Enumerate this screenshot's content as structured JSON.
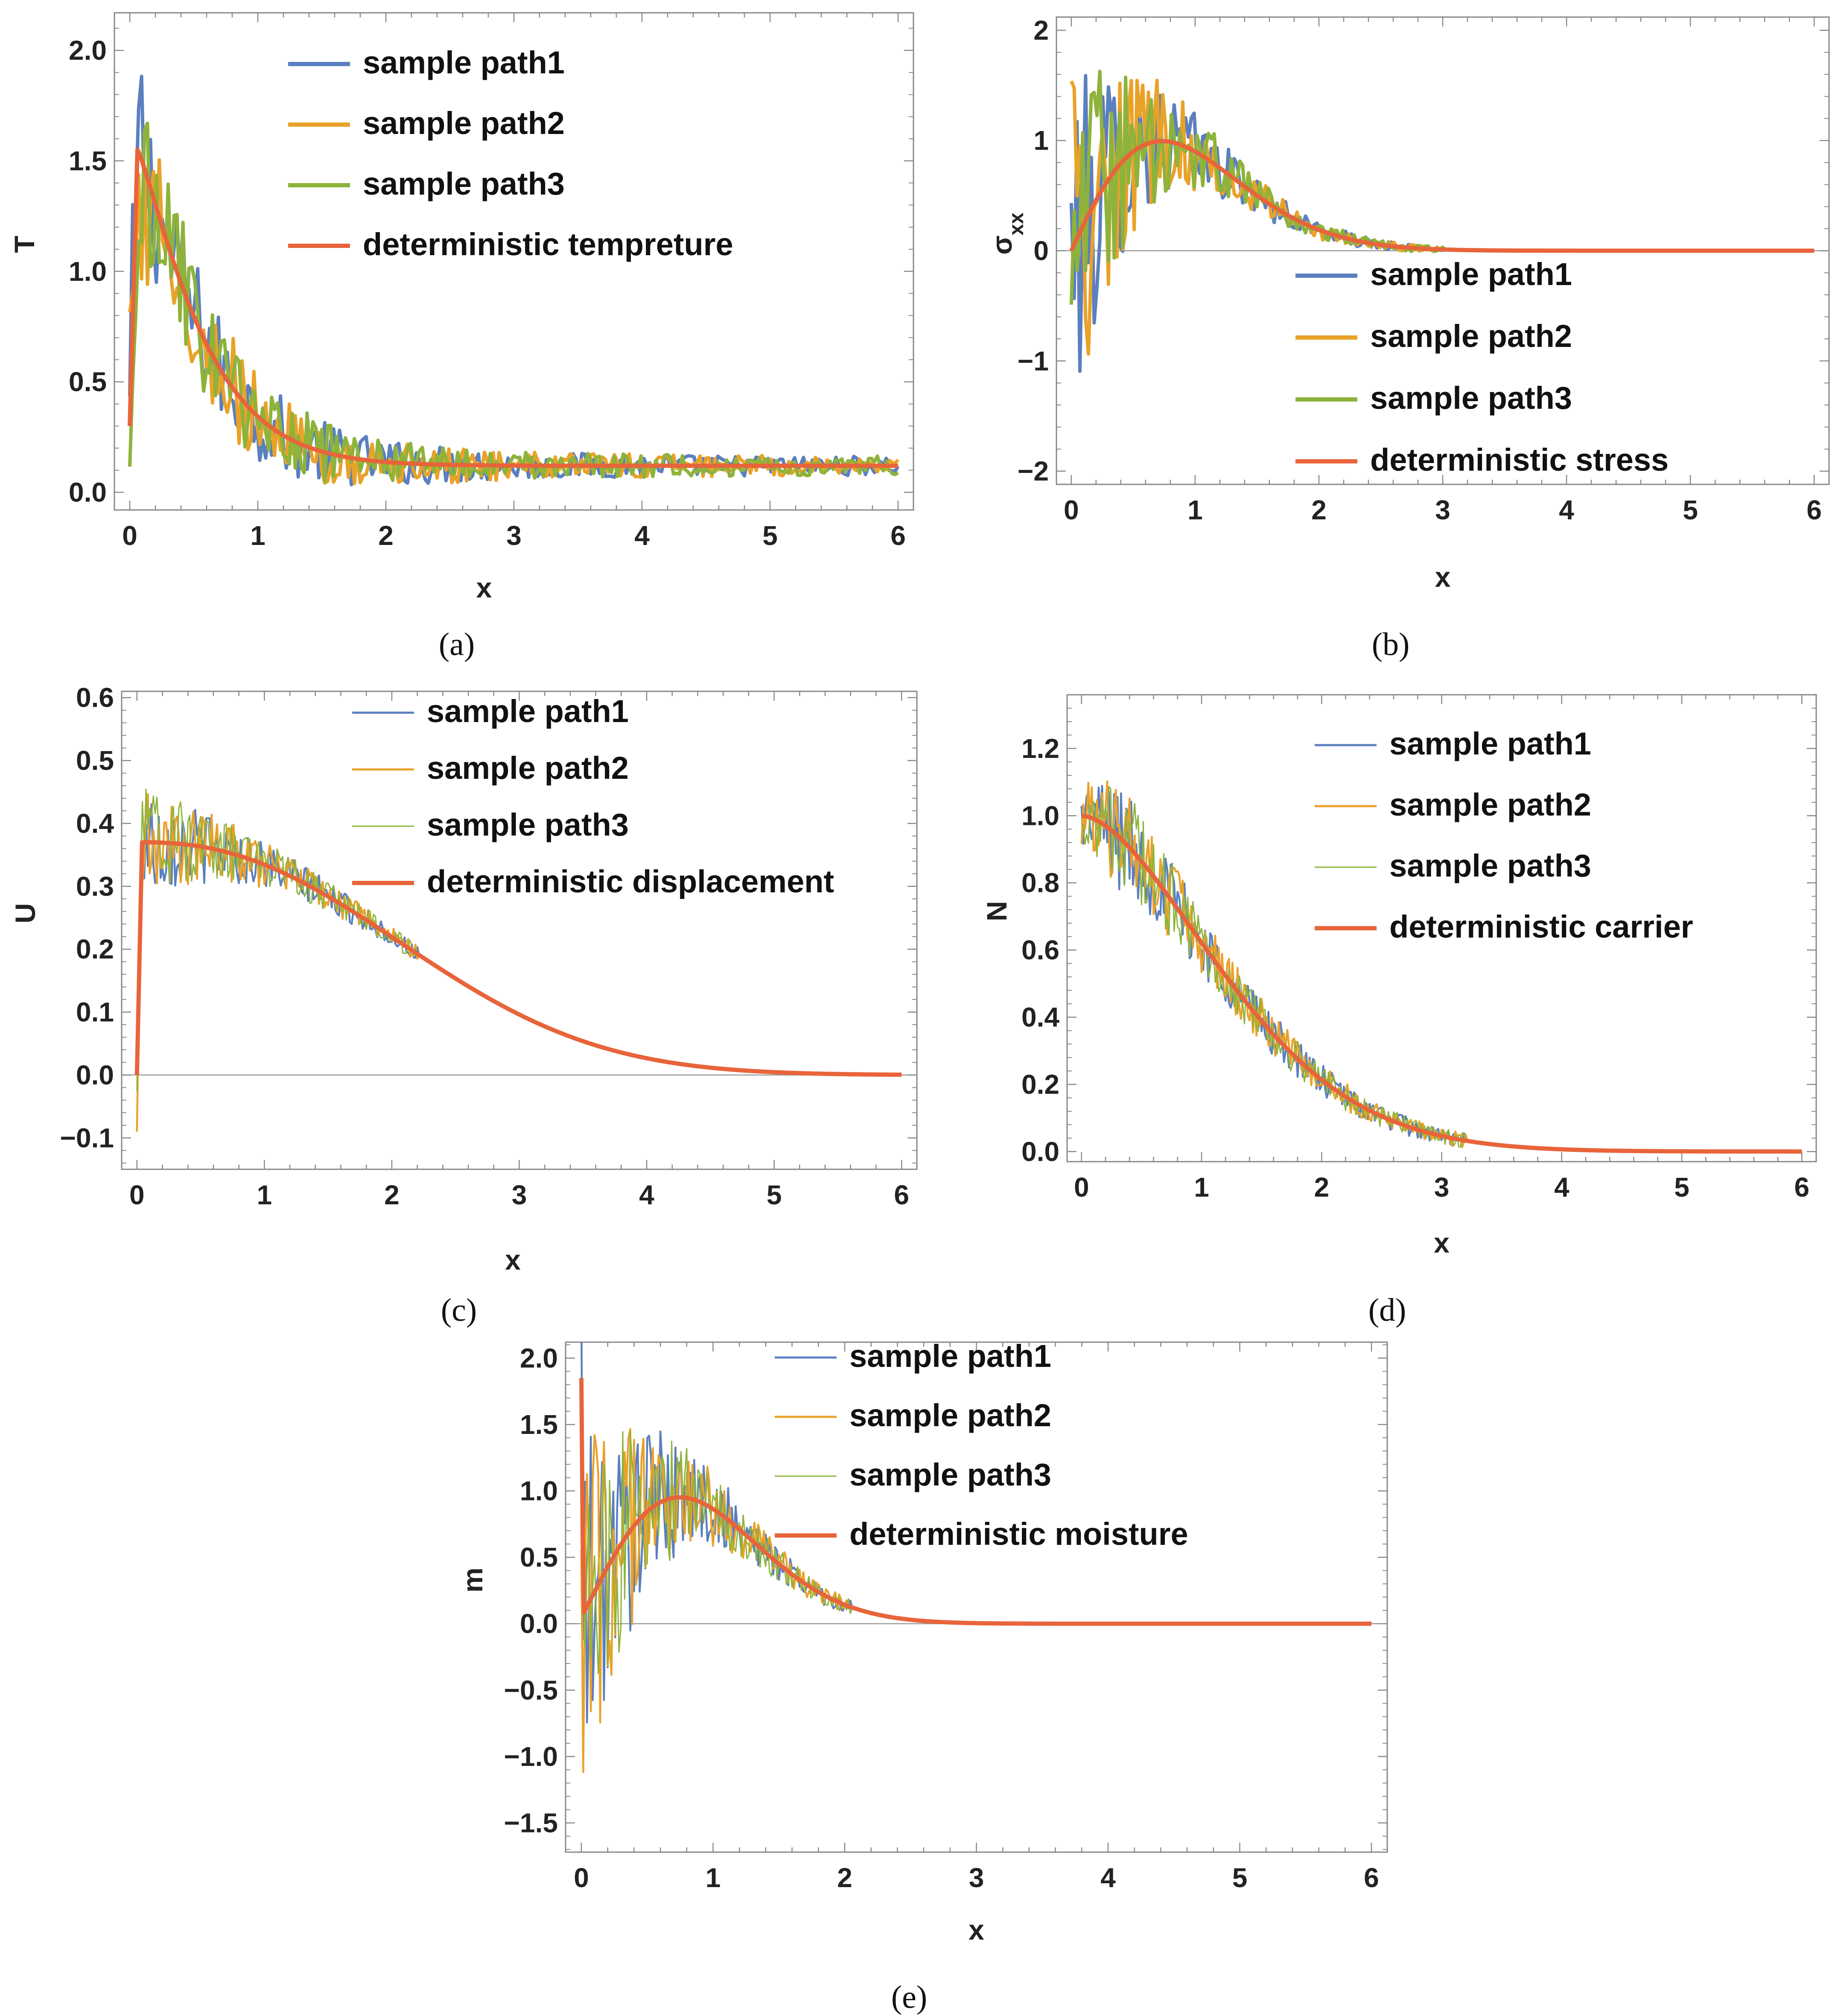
{
  "colors": {
    "path1": "#5b7fbf",
    "path2": "#e9a228",
    "path3": "#8db33b",
    "det": "#e8643a"
  },
  "chart_data": [
    {
      "type": "line",
      "id": "a",
      "panel_label": "(a)",
      "xlabel": "x",
      "ylabel": "T",
      "xlim": [
        -0.12,
        6.12
      ],
      "ylim": [
        -0.08,
        2.17
      ],
      "xticks": [
        "0",
        "1",
        "2",
        "3",
        "4",
        "5",
        "6"
      ],
      "yticks": [
        "0.0",
        "0.5",
        "1.0",
        "1.5",
        "2.0"
      ],
      "zero_line": false,
      "series": [
        {
          "name": "sample path1",
          "style": "path1"
        },
        {
          "name": "sample path2",
          "style": "path2"
        },
        {
          "name": "sample path3",
          "style": "path3"
        },
        {
          "name": "deterministic tempreture",
          "style": "det"
        }
      ]
    },
    {
      "type": "line",
      "id": "b",
      "panel_label": "(b)",
      "xlabel": "x",
      "ylabel": "σ",
      "ylabel_sub": "xx",
      "xlim": [
        -0.12,
        6.12
      ],
      "ylim": [
        -2.12,
        2.12
      ],
      "xticks": [
        "0",
        "1",
        "2",
        "3",
        "4",
        "5",
        "6"
      ],
      "yticks": [
        "−2",
        "−1",
        "0",
        "1",
        "2"
      ],
      "zero_line": true,
      "series": [
        {
          "name": "sample path1",
          "style": "path1"
        },
        {
          "name": "sample path2",
          "style": "path2"
        },
        {
          "name": "sample path3",
          "style": "path3"
        },
        {
          "name": "deterministic stress",
          "style": "det"
        }
      ]
    },
    {
      "type": "line",
      "id": "c",
      "panel_label": "(c)",
      "xlabel": "x",
      "ylabel": "U",
      "xlim": [
        -0.12,
        6.12
      ],
      "ylim": [
        -0.15,
        0.61
      ],
      "xticks": [
        "0",
        "1",
        "2",
        "3",
        "4",
        "5",
        "6"
      ],
      "yticks": [
        "−0.1",
        "0.0",
        "0.1",
        "0.2",
        "0.3",
        "0.4",
        "0.5",
        "0.6"
      ],
      "zero_line": true,
      "series": [
        {
          "name": "sample path1",
          "style": "path1"
        },
        {
          "name": "sample path2",
          "style": "path2"
        },
        {
          "name": "sample path3",
          "style": "path3"
        },
        {
          "name": "deterministic displacement",
          "style": "det"
        }
      ]
    },
    {
      "type": "line",
      "id": "d",
      "panel_label": "(d)",
      "xlabel": "x",
      "ylabel": "N",
      "xlim": [
        -0.12,
        6.12
      ],
      "ylim": [
        -0.03,
        1.36
      ],
      "xticks": [
        "0",
        "1",
        "2",
        "3",
        "4",
        "5",
        "6"
      ],
      "yticks": [
        "0.0",
        "0.2",
        "0.4",
        "0.6",
        "0.8",
        "1.0",
        "1.2"
      ],
      "zero_line": false,
      "series": [
        {
          "name": "sample path1",
          "style": "path1"
        },
        {
          "name": "sample path2",
          "style": "path2"
        },
        {
          "name": "sample path3",
          "style": "path3"
        },
        {
          "name": "deterministic carrier",
          "style": "det"
        }
      ]
    },
    {
      "type": "line",
      "id": "e",
      "panel_label": "(e)",
      "xlabel": "x",
      "ylabel": "m",
      "xlim": [
        -0.12,
        6.12
      ],
      "ylim": [
        -1.72,
        2.12
      ],
      "xticks": [
        "0",
        "1",
        "2",
        "3",
        "4",
        "5",
        "6"
      ],
      "yticks": [
        "−1.5",
        "−1.0",
        "−0.5",
        "0.0",
        "0.5",
        "1.0",
        "1.5",
        "2.0"
      ],
      "zero_line": true,
      "series": [
        {
          "name": "sample path1",
          "style": "path1"
        },
        {
          "name": "sample path2",
          "style": "path2"
        },
        {
          "name": "sample path3",
          "style": "path3"
        },
        {
          "name": "deterministic moisture",
          "style": "det"
        }
      ]
    }
  ]
}
